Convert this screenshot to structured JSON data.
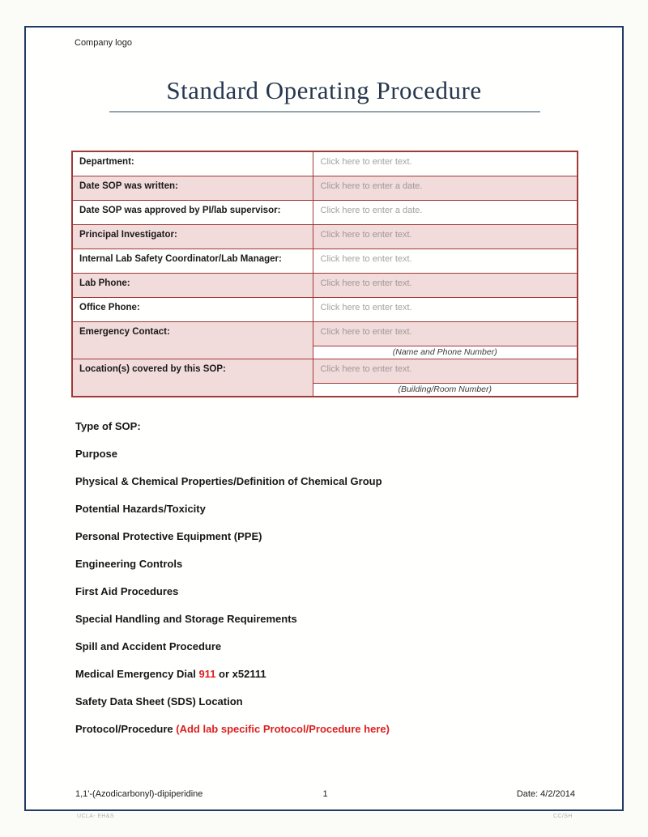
{
  "page": {
    "company_logo": "Company logo",
    "title": "Standard Operating Procedure"
  },
  "info_table": {
    "rows": [
      {
        "label": "Department:",
        "placeholder": "Click here to enter text.",
        "shaded": false
      },
      {
        "label": "Date SOP was written:",
        "placeholder": "Click here to enter a date.",
        "shaded": true
      },
      {
        "label": "Date SOP was approved by PI/lab supervisor:",
        "placeholder": "Click here to enter a date.",
        "shaded": false
      },
      {
        "label": "Principal Investigator:",
        "placeholder": "Click here to enter text.",
        "shaded": true
      },
      {
        "label": "Internal Lab Safety Coordinator/Lab Manager:",
        "placeholder": "Click here to enter text.",
        "shaded": false
      },
      {
        "label": "Lab Phone:",
        "placeholder": "Click here to enter text.",
        "shaded": true
      },
      {
        "label": "Office Phone:",
        "placeholder": "Click here to enter text.",
        "shaded": false
      },
      {
        "label": "Emergency Contact:",
        "placeholder": "Click here to enter text.",
        "shaded": true,
        "note": "(Name and Phone Number)"
      },
      {
        "label": "Location(s) covered by this SOP:",
        "placeholder": "Click here to enter text.",
        "shaded": true,
        "note": "(Building/Room Number)"
      }
    ]
  },
  "sections": [
    {
      "parts": [
        {
          "text": "Type of SOP:"
        }
      ]
    },
    {
      "parts": [
        {
          "text": "Purpose"
        }
      ]
    },
    {
      "parts": [
        {
          "text": "Physical & Chemical Properties/Definition of Chemical Group"
        }
      ]
    },
    {
      "parts": [
        {
          "text": "Potential Hazards/Toxicity"
        }
      ]
    },
    {
      "parts": [
        {
          "text": "Personal Protective Equipment (PPE)"
        }
      ]
    },
    {
      "parts": [
        {
          "text": "Engineering Controls"
        }
      ]
    },
    {
      "parts": [
        {
          "text": "First Aid Procedures"
        }
      ]
    },
    {
      "parts": [
        {
          "text": "Special Handling and Storage Requirements"
        }
      ]
    },
    {
      "parts": [
        {
          "text": "Spill and Accident Procedure"
        }
      ]
    },
    {
      "parts": [
        {
          "text": "Medical Emergency Dial "
        },
        {
          "text": "911",
          "red": true
        },
        {
          "text": " or x52111"
        }
      ]
    },
    {
      "parts": [
        {
          "text": "Safety Data Sheet (SDS) Location"
        }
      ]
    },
    {
      "parts": [
        {
          "text": "Protocol/Procedure "
        },
        {
          "text": "(Add lab specific Protocol/Procedure here)",
          "red": true
        }
      ]
    }
  ],
  "footer": {
    "document_name": "1,1'-(Azodicarbonyl)-dipiperidine",
    "page_number": "1",
    "date": "Date: 4/2/2014"
  },
  "bottom_marks": {
    "left": "UCLA- EH&S",
    "right": "CC/SH"
  },
  "colors": {
    "page_border_navy": "#1F3A64",
    "title_navy": "#26374E",
    "title_rule": "#93A4B3",
    "table_border_red": "#9E3A38",
    "row_shaded_pink": "#F2DBDB",
    "emphasis_red": "#DD1F1F",
    "placeholder_gray": "#A3A3A3"
  }
}
